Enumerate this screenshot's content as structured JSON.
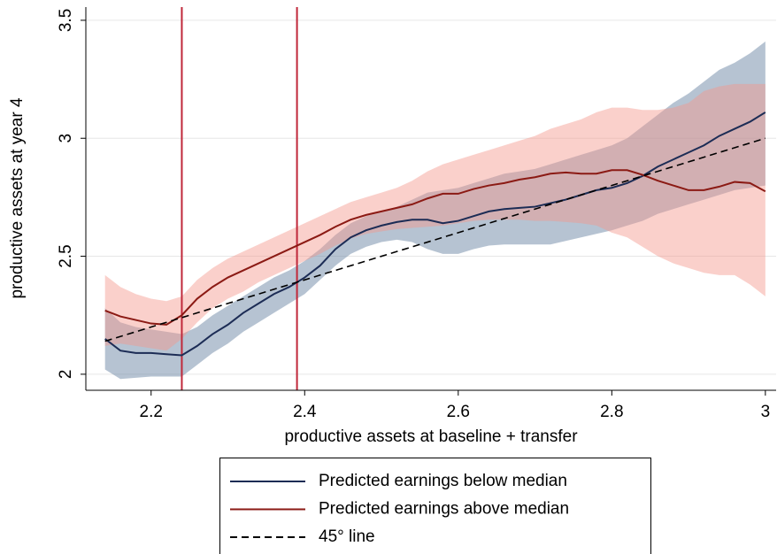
{
  "chart_data": {
    "type": "line_band",
    "x_label": "productive assets at baseline + transfer",
    "y_label": "productive assets at year 4",
    "xlim": [
      2.115,
      3.014
    ],
    "ylim": [
      1.932,
      3.556
    ],
    "xticks": [
      2.2,
      2.4,
      2.6,
      2.8,
      3
    ],
    "yticks": [
      2,
      2.5,
      3,
      3.5
    ],
    "grid": true,
    "x": [
      2.14,
      2.16,
      2.18,
      2.2,
      2.22,
      2.24,
      2.26,
      2.28,
      2.3,
      2.32,
      2.34,
      2.36,
      2.38,
      2.4,
      2.42,
      2.44,
      2.46,
      2.48,
      2.5,
      2.52,
      2.54,
      2.56,
      2.58,
      2.6,
      2.62,
      2.64,
      2.66,
      2.68,
      2.7,
      2.72,
      2.74,
      2.76,
      2.78,
      2.8,
      2.82,
      2.84,
      2.86,
      2.88,
      2.9,
      2.92,
      2.94,
      2.96,
      2.98,
      3.0
    ],
    "series": [
      {
        "name": "Predicted earnings below median",
        "color": "#1c2c55",
        "band_color": "rgba(110,135,165,0.5)",
        "values": [
          2.15,
          2.1,
          2.09,
          2.09,
          2.085,
          2.08,
          2.12,
          2.17,
          2.21,
          2.26,
          2.3,
          2.34,
          2.37,
          2.41,
          2.46,
          2.53,
          2.58,
          2.61,
          2.63,
          2.645,
          2.655,
          2.655,
          2.64,
          2.65,
          2.67,
          2.69,
          2.7,
          2.705,
          2.71,
          2.725,
          2.74,
          2.76,
          2.78,
          2.79,
          2.81,
          2.84,
          2.88,
          2.91,
          2.94,
          2.97,
          3.01,
          3.04,
          3.07,
          3.11
        ],
        "lower": [
          2.02,
          1.98,
          1.985,
          1.99,
          1.99,
          1.99,
          2.04,
          2.09,
          2.13,
          2.18,
          2.22,
          2.26,
          2.3,
          2.34,
          2.4,
          2.46,
          2.51,
          2.54,
          2.56,
          2.57,
          2.56,
          2.53,
          2.51,
          2.51,
          2.53,
          2.545,
          2.55,
          2.55,
          2.55,
          2.55,
          2.565,
          2.58,
          2.595,
          2.61,
          2.63,
          2.65,
          2.68,
          2.7,
          2.72,
          2.74,
          2.76,
          2.78,
          2.79,
          2.8
        ],
        "upper": [
          2.28,
          2.22,
          2.2,
          2.19,
          2.18,
          2.17,
          2.2,
          2.25,
          2.29,
          2.33,
          2.37,
          2.41,
          2.44,
          2.48,
          2.53,
          2.59,
          2.64,
          2.67,
          2.69,
          2.71,
          2.74,
          2.77,
          2.78,
          2.79,
          2.81,
          2.83,
          2.85,
          2.86,
          2.87,
          2.89,
          2.91,
          2.93,
          2.95,
          2.97,
          3.0,
          3.05,
          3.1,
          3.15,
          3.19,
          3.24,
          3.29,
          3.32,
          3.36,
          3.41
        ]
      },
      {
        "name": "Predicted earnings above median",
        "color": "#8b1a14",
        "band_color": "rgba(244,150,140,0.45)",
        "values": [
          2.27,
          2.245,
          2.23,
          2.215,
          2.21,
          2.25,
          2.32,
          2.37,
          2.41,
          2.44,
          2.47,
          2.5,
          2.53,
          2.56,
          2.59,
          2.625,
          2.655,
          2.675,
          2.69,
          2.705,
          2.72,
          2.745,
          2.765,
          2.765,
          2.785,
          2.8,
          2.81,
          2.825,
          2.835,
          2.85,
          2.855,
          2.85,
          2.85,
          2.865,
          2.865,
          2.845,
          2.82,
          2.8,
          2.78,
          2.78,
          2.795,
          2.815,
          2.81,
          2.775
        ],
        "lower": [
          2.12,
          2.13,
          2.12,
          2.11,
          2.1,
          2.15,
          2.22,
          2.28,
          2.32,
          2.35,
          2.39,
          2.42,
          2.45,
          2.48,
          2.51,
          2.545,
          2.575,
          2.595,
          2.605,
          2.615,
          2.62,
          2.625,
          2.63,
          2.64,
          2.65,
          2.655,
          2.655,
          2.655,
          2.65,
          2.65,
          2.645,
          2.64,
          2.63,
          2.6,
          2.58,
          2.54,
          2.5,
          2.47,
          2.45,
          2.43,
          2.42,
          2.42,
          2.38,
          2.33
        ],
        "upper": [
          2.42,
          2.37,
          2.34,
          2.32,
          2.31,
          2.33,
          2.4,
          2.45,
          2.49,
          2.52,
          2.55,
          2.58,
          2.61,
          2.64,
          2.67,
          2.7,
          2.73,
          2.75,
          2.77,
          2.79,
          2.82,
          2.86,
          2.89,
          2.91,
          2.93,
          2.95,
          2.97,
          2.99,
          3.01,
          3.04,
          3.06,
          3.08,
          3.11,
          3.13,
          3.13,
          3.12,
          3.12,
          3.13,
          3.15,
          3.2,
          3.22,
          3.23,
          3.23,
          3.23
        ]
      }
    ],
    "diagonal": {
      "name": "45° line",
      "color": "#000000",
      "x": [
        2.14,
        3.0
      ],
      "values": [
        2.14,
        3.0
      ]
    },
    "vlines": {
      "color": "#c0283a",
      "x": [
        2.24,
        2.39
      ]
    }
  }
}
